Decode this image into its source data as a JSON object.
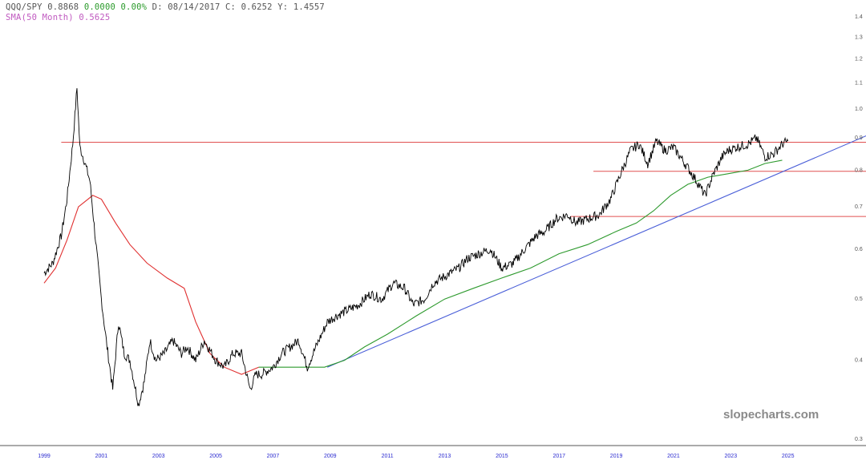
{
  "header": {
    "symbol": "QQQ/SPY",
    "last": "0.8868",
    "change": "0.0000",
    "change_pct": "0.00%",
    "date_label": "D:",
    "date": "08/14/2017",
    "close_label": "C:",
    "close": "0.6252",
    "y_label": "Y:",
    "y": "1.4557",
    "sma_label": "SMA(50 Month)",
    "sma_value": "0.5625"
  },
  "watermark": "slopecharts.com",
  "colors": {
    "price": "#000000",
    "sma_early": "#e03030",
    "sma_late": "#2e9a2e",
    "trendline": "#4a5fd8",
    "hlines": "#e05050",
    "change_text": "#2a9a2a",
    "sma_text": "#c05ac0",
    "axis_text": "#2a2ad0"
  },
  "chart_data": {
    "type": "line",
    "scale": "log",
    "ylim": [
      0.3,
      1.4
    ],
    "xlim": [
      1999,
      2029
    ],
    "y_ticks": [
      "0.3",
      "0.4",
      "0.5",
      "0.6",
      "0.7",
      "0.8",
      "0.9",
      "1.0",
      "1.1",
      "1.2",
      "1.3",
      "1.4"
    ],
    "x_ticks": [
      "1999",
      "2001",
      "2003",
      "2005",
      "2007",
      "2009",
      "2011",
      "2013",
      "2015",
      "2017",
      "2019",
      "2021",
      "2023",
      "2025"
    ],
    "series": [
      {
        "name": "QQQ/SPY",
        "x": [
          1999.0,
          1999.3,
          1999.6,
          1999.8,
          2000.0,
          2000.15,
          2000.25,
          2000.4,
          2000.6,
          2000.8,
          2001.0,
          2001.2,
          2001.4,
          2001.6,
          2001.8,
          2002.0,
          2002.3,
          2002.5,
          2002.7,
          2002.9,
          2003.2,
          2003.5,
          2003.8,
          2004.0,
          2004.3,
          2004.6,
          2005.0,
          2005.3,
          2005.6,
          2005.9,
          2006.2,
          2006.4,
          2006.6,
          2007.0,
          2007.3,
          2007.6,
          2007.9,
          2008.2,
          2008.5,
          2008.9,
          2009.2,
          2009.6,
          2010.0,
          2010.4,
          2010.8,
          2011.2,
          2011.6,
          2011.9,
          2012.3,
          2012.6,
          2012.9,
          2013.2,
          2013.5,
          2013.8,
          2014.2,
          2014.6,
          2015.0,
          2015.4,
          2015.8,
          2016.2,
          2016.5,
          2016.9,
          2017.3,
          2017.6,
          2018.0,
          2018.4,
          2018.8,
          2019.2,
          2019.5,
          2019.8,
          2020.1,
          2020.4,
          2020.7,
          2021.0,
          2021.4,
          2021.8,
          2022.1,
          2022.4,
          2022.7,
          2022.9,
          2023.2,
          2023.6,
          2023.9,
          2024.2,
          2024.5,
          2024.8,
          2025.0
        ],
        "values": [
          0.55,
          0.57,
          0.63,
          0.72,
          0.88,
          1.08,
          0.87,
          0.83,
          0.77,
          0.62,
          0.5,
          0.42,
          0.36,
          0.46,
          0.41,
          0.4,
          0.34,
          0.37,
          0.43,
          0.4,
          0.41,
          0.43,
          0.41,
          0.42,
          0.4,
          0.43,
          0.4,
          0.39,
          0.41,
          0.41,
          0.36,
          0.38,
          0.38,
          0.39,
          0.41,
          0.42,
          0.43,
          0.39,
          0.42,
          0.46,
          0.47,
          0.48,
          0.49,
          0.51,
          0.5,
          0.53,
          0.52,
          0.49,
          0.5,
          0.53,
          0.54,
          0.55,
          0.56,
          0.58,
          0.59,
          0.6,
          0.56,
          0.57,
          0.6,
          0.63,
          0.64,
          0.67,
          0.68,
          0.66,
          0.67,
          0.68,
          0.72,
          0.8,
          0.86,
          0.88,
          0.82,
          0.89,
          0.86,
          0.87,
          0.82,
          0.77,
          0.73,
          0.79,
          0.84,
          0.86,
          0.87,
          0.88,
          0.9,
          0.84,
          0.85,
          0.88,
          0.89
        ]
      },
      {
        "name": "SMA(50 Month)",
        "x": [
          1999.0,
          1999.4,
          1999.8,
          2000.2,
          2000.7,
          2001.0,
          2001.5,
          2002.0,
          2002.6,
          2003.3,
          2003.9,
          2004.3,
          2004.8,
          2005.3,
          2005.9,
          2006.5,
          2007.2,
          2008.0,
          2008.8,
          2009.5,
          2010.2,
          2011.0,
          2012.0,
          2013.0,
          2014.0,
          2015.0,
          2016.0,
          2017.0,
          2018.0,
          2019.0,
          2019.7,
          2020.3,
          2020.9,
          2021.5,
          2022.2,
          2022.9,
          2023.6,
          2024.2,
          2024.8
        ],
        "values": [
          0.53,
          0.56,
          0.62,
          0.7,
          0.73,
          0.72,
          0.66,
          0.61,
          0.57,
          0.54,
          0.52,
          0.46,
          0.41,
          0.39,
          0.38,
          0.39,
          0.39,
          0.39,
          0.39,
          0.4,
          0.42,
          0.44,
          0.47,
          0.5,
          0.52,
          0.54,
          0.56,
          0.59,
          0.61,
          0.64,
          0.66,
          0.69,
          0.73,
          0.76,
          0.78,
          0.79,
          0.8,
          0.82,
          0.83
        ]
      },
      {
        "name": "",
        "x": [
          2008.9,
          2029.0
        ],
        "values": [
          0.39,
          0.96
        ]
      }
    ],
    "hlines": [
      {
        "y": 0.886,
        "x_start": 1999.6,
        "x_end": 2029
      },
      {
        "y": 0.797,
        "x_start": 2018.2,
        "x_end": 2029
      },
      {
        "y": 0.676,
        "x_start": 2017.4,
        "x_end": 2029
      }
    ],
    "grid": false
  }
}
